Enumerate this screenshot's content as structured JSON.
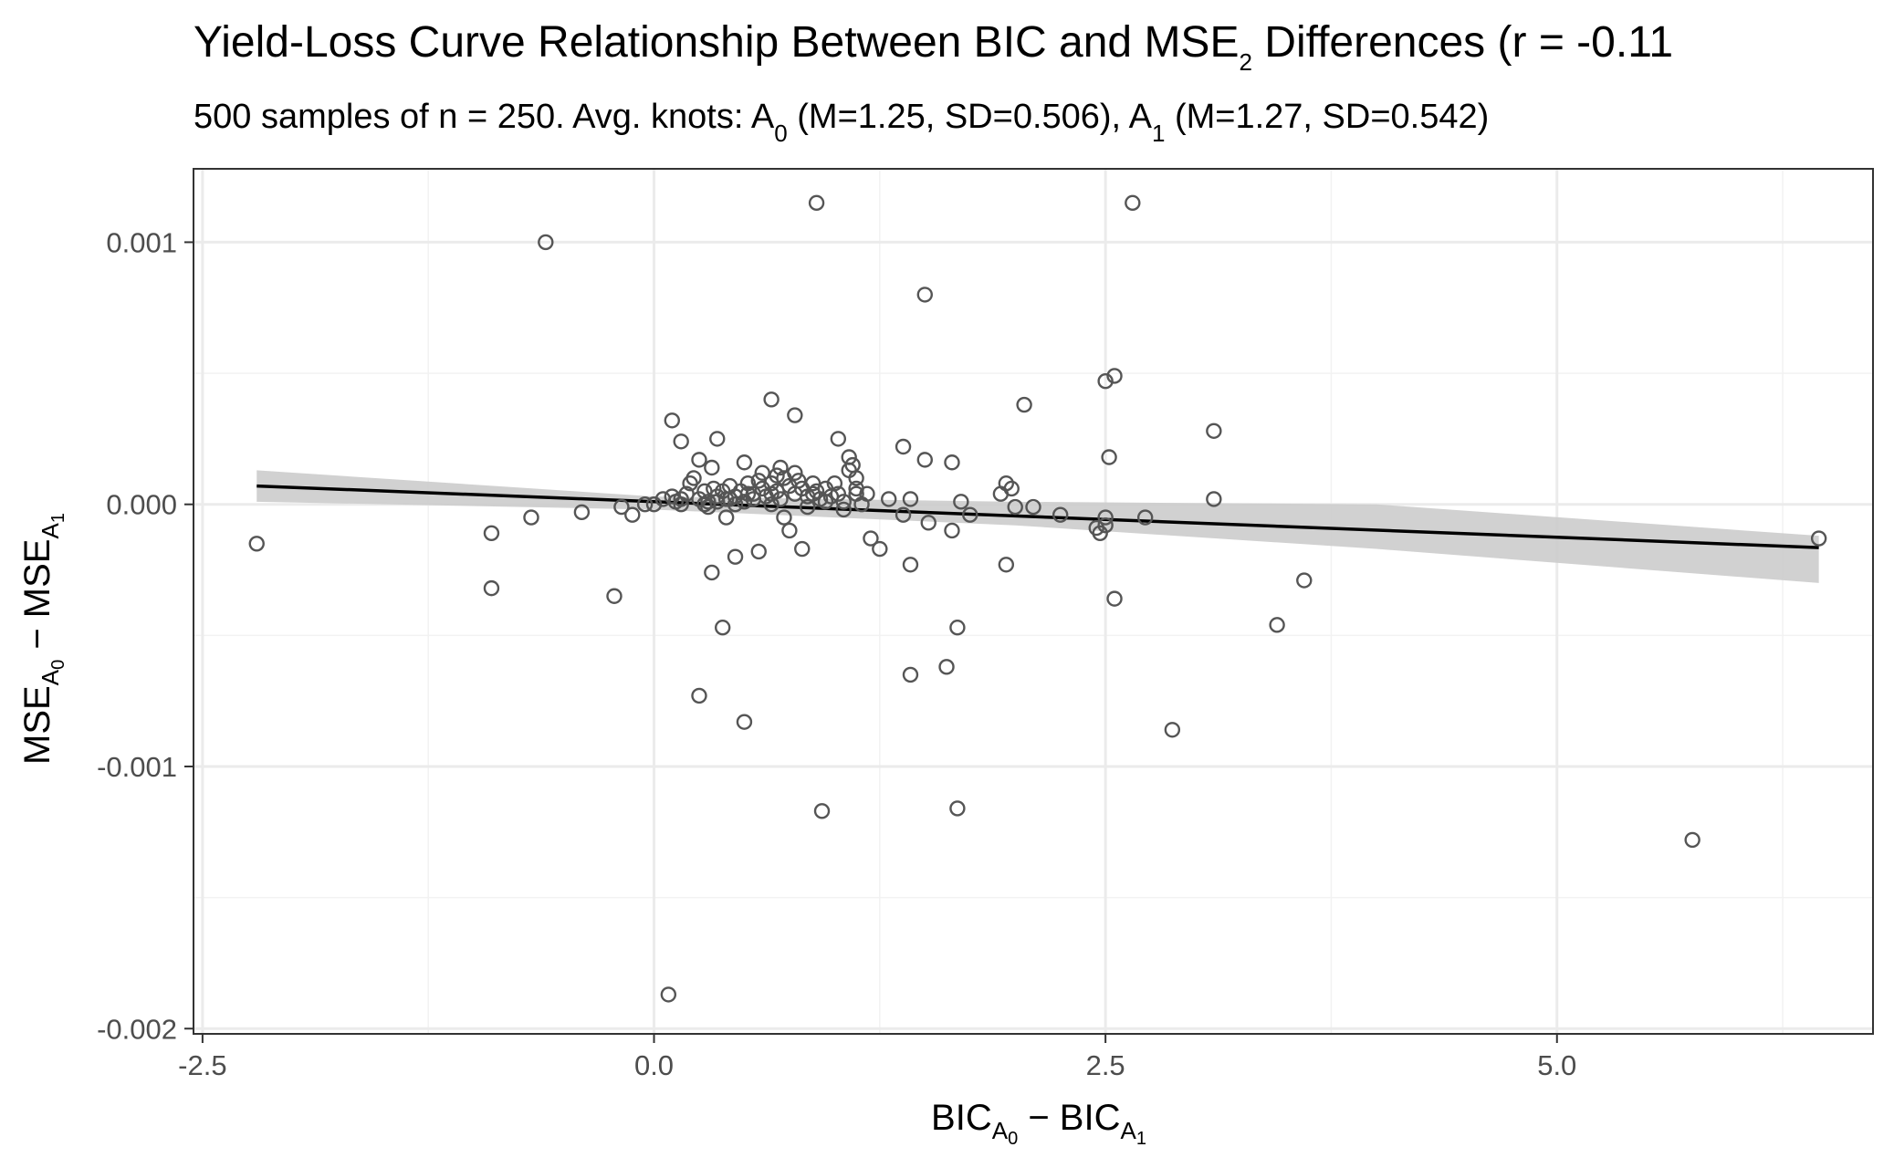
{
  "chart_data": {
    "type": "scatter",
    "title": {
      "prefix": "Yield-Loss Curve Relationship Between BIC and MSE",
      "subscript": "2",
      "suffix": " Differences (r = -0.11"
    },
    "subtitle": {
      "part1": "500 samples of n = 250. Avg. knots:  A",
      "sub1": "0",
      "part2": " (M=1.25, SD=0.506), A",
      "sub2": "1",
      "part3": " (M=1.27, SD=0.542)"
    },
    "xlabel": {
      "a": "BIC",
      "a_sub": "A",
      "a_subsub": "0",
      "minus": " − ",
      "b": "BIC",
      "b_sub": "A",
      "b_subsub": "1"
    },
    "ylabel": {
      "a": "MSE",
      "a_sub": "A",
      "a_subsub": "0",
      "minus": " − ",
      "b": "MSE",
      "b_sub": "A",
      "b_subsub": "1"
    },
    "xlim": [
      -2.55,
      6.75
    ],
    "ylim": [
      -0.00202,
      0.00128
    ],
    "x_ticks": [
      -2.5,
      0.0,
      2.5,
      5.0
    ],
    "x_tick_labels": [
      "-2.5",
      "0.0",
      "2.5",
      "5.0"
    ],
    "y_ticks": [
      -0.002,
      -0.001,
      0.0,
      0.001
    ],
    "y_tick_labels": [
      "-0.002",
      "-0.001",
      "0.000",
      "0.001"
    ],
    "grid": true,
    "colors": {
      "points": "#555555",
      "line": "#000000",
      "ribbon": "#cccccc",
      "grid": "#ebebeb",
      "panel_border": "#333333"
    },
    "fit_line": {
      "x": [
        -2.2,
        6.45
      ],
      "y": [
        7e-05,
        -0.000165
      ]
    },
    "confidence_band": {
      "x": [
        -2.2,
        0.0,
        2.0,
        4.0,
        6.45
      ],
      "upper": [
        0.00013,
        3e-05,
        1e-05,
        0.0,
        -0.00012
      ],
      "lower": [
        1e-05,
        -2e-05,
        -8e-05,
        -0.00017,
        -0.0003
      ]
    },
    "points": [
      [
        -2.2,
        -0.00015
      ],
      [
        -0.6,
        0.001
      ],
      [
        0.9,
        0.00115
      ],
      [
        2.65,
        0.00115
      ],
      [
        1.5,
        0.0008
      ],
      [
        2.55,
        0.00049
      ],
      [
        2.5,
        0.00047
      ],
      [
        0.65,
        0.0004
      ],
      [
        2.05,
        0.00038
      ],
      [
        0.78,
        0.00034
      ],
      [
        0.1,
        0.00032
      ],
      [
        3.1,
        0.00028
      ],
      [
        1.02,
        0.00025
      ],
      [
        0.35,
        0.00025
      ],
      [
        0.15,
        0.00024
      ],
      [
        1.38,
        0.00022
      ],
      [
        2.52,
        0.00018
      ],
      [
        1.5,
        0.00017
      ],
      [
        1.65,
        0.00016
      ],
      [
        0.25,
        0.00017
      ],
      [
        0.5,
        0.00016
      ],
      [
        0.32,
        0.00014
      ],
      [
        1.92,
        4e-05
      ],
      [
        1.95,
        8e-05
      ],
      [
        1.98,
        6e-05
      ],
      [
        3.1,
        2e-05
      ],
      [
        1.7,
        1e-05
      ],
      [
        2.0,
        -1e-05
      ],
      [
        2.1,
        -1e-05
      ],
      [
        1.42,
        2e-05
      ],
      [
        1.38,
        -4e-05
      ],
      [
        1.52,
        -7e-05
      ],
      [
        1.65,
        -0.0001
      ],
      [
        1.75,
        -4e-05
      ],
      [
        2.25,
        -4e-05
      ],
      [
        2.45,
        -9e-05
      ],
      [
        2.5,
        -5e-05
      ],
      [
        2.47,
        -0.00011
      ],
      [
        2.5,
        -8e-05
      ],
      [
        2.72,
        -5e-05
      ],
      [
        1.2,
        -0.00013
      ],
      [
        1.25,
        -0.00017
      ],
      [
        1.42,
        -0.00023
      ],
      [
        1.95,
        -0.00023
      ],
      [
        2.55,
        -0.00036
      ],
      [
        3.6,
        -0.00029
      ],
      [
        3.45,
        -0.00046
      ],
      [
        1.68,
        -0.00047
      ],
      [
        1.62,
        -0.00062
      ],
      [
        1.42,
        -0.00065
      ],
      [
        2.87,
        -0.00086
      ],
      [
        1.68,
        -0.00116
      ],
      [
        0.93,
        -0.00117
      ],
      [
        5.75,
        -0.00128
      ],
      [
        6.45,
        -0.00013
      ],
      [
        0.08,
        -0.00187
      ],
      [
        0.25,
        -0.00073
      ],
      [
        0.5,
        -0.00083
      ],
      [
        0.38,
        -0.00047
      ],
      [
        0.32,
        -0.00026
      ],
      [
        0.45,
        -0.0002
      ],
      [
        0.58,
        -0.00018
      ],
      [
        0.82,
        -0.00017
      ],
      [
        0.75,
        -0.0001
      ],
      [
        0.72,
        -5e-05
      ],
      [
        0.4,
        -5e-05
      ],
      [
        -0.9,
        -0.00011
      ],
      [
        -0.9,
        -0.00032
      ],
      [
        -0.68,
        -5e-05
      ],
      [
        -0.4,
        -3e-05
      ],
      [
        -0.22,
        -0.00035
      ],
      [
        -0.18,
        -1e-05
      ],
      [
        -0.12,
        -4e-05
      ],
      [
        -0.05,
        0.0
      ],
      [
        0.0,
        0.0
      ],
      [
        0.05,
        2e-05
      ],
      [
        0.1,
        3e-05
      ],
      [
        0.12,
        1e-05
      ],
      [
        0.15,
        2e-05
      ],
      [
        0.18,
        4e-05
      ],
      [
        0.2,
        8e-05
      ],
      [
        0.22,
        0.0001
      ],
      [
        0.25,
        2e-05
      ],
      [
        0.28,
        5e-05
      ],
      [
        0.3,
        1e-05
      ],
      [
        0.3,
        -1e-05
      ],
      [
        0.33,
        6e-05
      ],
      [
        0.35,
        3e-05
      ],
      [
        0.38,
        5e-05
      ],
      [
        0.4,
        2e-05
      ],
      [
        0.42,
        7e-05
      ],
      [
        0.45,
        3e-05
      ],
      [
        0.48,
        5e-05
      ],
      [
        0.5,
        1e-05
      ],
      [
        0.52,
        8e-05
      ],
      [
        0.55,
        4e-05
      ],
      [
        0.58,
        9e-05
      ],
      [
        0.6,
        6e-05
      ],
      [
        0.62,
        3e-05
      ],
      [
        0.65,
        8e-05
      ],
      [
        0.68,
        5e-05
      ],
      [
        0.7,
        2e-05
      ],
      [
        0.7,
        0.00014
      ],
      [
        0.72,
        0.0001
      ],
      [
        0.75,
        7e-05
      ],
      [
        0.78,
        4e-05
      ],
      [
        0.8,
        9e-05
      ],
      [
        0.82,
        6e-05
      ],
      [
        0.85,
        3e-05
      ],
      [
        0.88,
        8e-05
      ],
      [
        0.9,
        5e-05
      ],
      [
        0.92,
        2e-05
      ],
      [
        0.95,
        6e-05
      ],
      [
        0.98,
        3e-05
      ],
      [
        1.0,
        8e-05
      ],
      [
        1.02,
        4e-05
      ],
      [
        1.05,
        1e-05
      ],
      [
        1.08,
        0.00013
      ],
      [
        1.08,
        0.00018
      ],
      [
        1.1,
        0.00015
      ],
      [
        1.12,
        0.0001
      ],
      [
        1.12,
        6e-05
      ],
      [
        1.15,
        0.0
      ],
      [
        1.18,
        4e-05
      ],
      [
        1.05,
        -2e-05
      ],
      [
        0.95,
        1e-05
      ],
      [
        0.85,
        -1e-05
      ],
      [
        0.65,
        0.0
      ],
      [
        0.55,
        2e-05
      ],
      [
        0.45,
        0.0
      ],
      [
        0.35,
        1e-05
      ],
      [
        0.28,
        0.0
      ],
      [
        0.6,
        0.00012
      ],
      [
        0.68,
        0.00011
      ],
      [
        0.78,
        0.00012
      ],
      [
        0.88,
        4e-05
      ],
      [
        1.12,
        4e-05
      ],
      [
        0.65,
        4e-05
      ],
      [
        0.52,
        4e-05
      ],
      [
        0.42,
        2e-05
      ],
      [
        0.15,
        0.0
      ],
      [
        1.3,
        2e-05
      ]
    ]
  }
}
